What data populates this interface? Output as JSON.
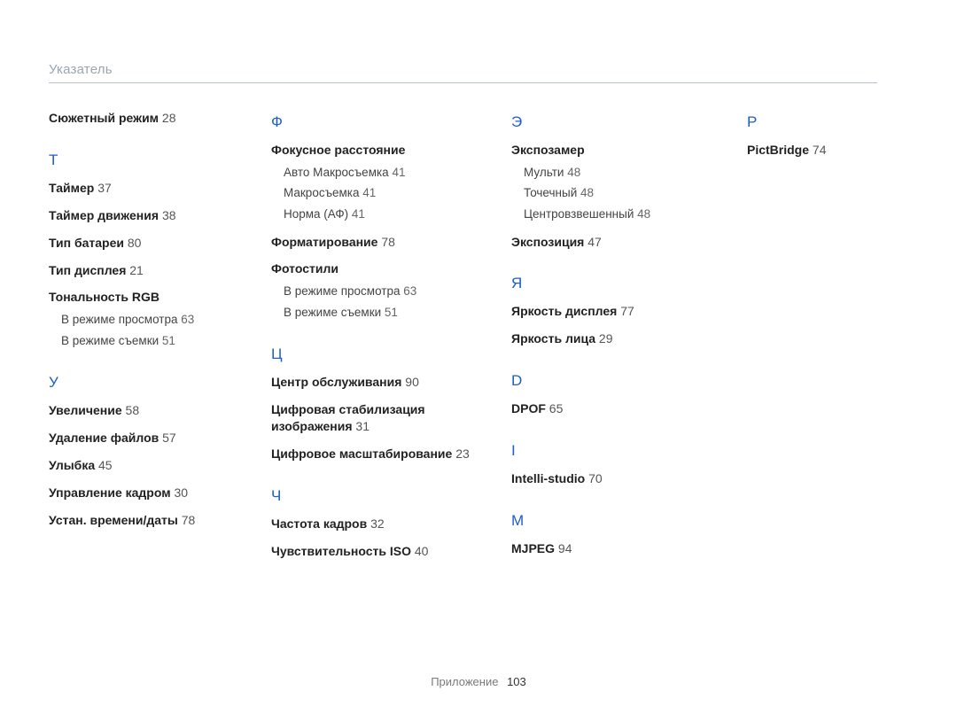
{
  "header": "Указатель",
  "footer_label": "Приложение",
  "footer_page": "103",
  "columns": [
    [
      {
        "type": "entry",
        "text": "Сюжетный режим",
        "page": "28",
        "top": true
      },
      {
        "type": "letter",
        "text": "Т"
      },
      {
        "type": "entry",
        "text": "Таймер",
        "page": "37"
      },
      {
        "type": "entry",
        "text": "Таймер движения",
        "page": "38"
      },
      {
        "type": "entry",
        "text": "Тип батареи",
        "page": "80"
      },
      {
        "type": "entry",
        "text": "Тип дисплея",
        "page": "21"
      },
      {
        "type": "entry",
        "text": "Тональность RGB"
      },
      {
        "type": "sub",
        "text": "В режиме просмотра",
        "page": "63"
      },
      {
        "type": "sub",
        "text": "В режиме съемки",
        "page": "51"
      },
      {
        "type": "letter",
        "text": "У"
      },
      {
        "type": "entry",
        "text": "Увеличение",
        "page": "58"
      },
      {
        "type": "entry",
        "text": "Удаление файлов",
        "page": "57"
      },
      {
        "type": "entry",
        "text": "Улыбка",
        "page": "45"
      },
      {
        "type": "entry",
        "text": "Управление кадром",
        "page": "30"
      },
      {
        "type": "entry",
        "text": "Устан. времени/даты",
        "page": "78"
      }
    ],
    [
      {
        "type": "letter",
        "text": "Ф",
        "first": true
      },
      {
        "type": "entry",
        "text": "Фокусное расстояние"
      },
      {
        "type": "sub",
        "text": "Авто Макросъемка",
        "page": "41"
      },
      {
        "type": "sub",
        "text": "Макросъемка",
        "page": "41"
      },
      {
        "type": "sub",
        "text": "Норма (АФ)",
        "page": "41"
      },
      {
        "type": "entry",
        "text": "Форматирование",
        "page": "78"
      },
      {
        "type": "entry",
        "text": "Фотостили"
      },
      {
        "type": "sub",
        "text": "В режиме просмотра",
        "page": "63"
      },
      {
        "type": "sub",
        "text": "В режиме съемки",
        "page": "51"
      },
      {
        "type": "letter",
        "text": "Ц"
      },
      {
        "type": "entry",
        "text": "Центр обслуживания",
        "page": "90"
      },
      {
        "type": "entry",
        "text": "Цифровая стабилизация изображения",
        "page": "31"
      },
      {
        "type": "entry",
        "text": "Цифровое масштабирование",
        "page": "23"
      },
      {
        "type": "letter",
        "text": "Ч"
      },
      {
        "type": "entry",
        "text": "Частота кадров",
        "page": "32"
      },
      {
        "type": "entry",
        "text": "Чувствительность ISO",
        "page": "40"
      }
    ],
    [
      {
        "type": "letter",
        "text": "Э",
        "first": true
      },
      {
        "type": "entry",
        "text": "Экспозамер"
      },
      {
        "type": "sub",
        "text": "Мульти",
        "page": "48"
      },
      {
        "type": "sub",
        "text": "Точечный",
        "page": "48"
      },
      {
        "type": "sub",
        "text": "Центровзвешенный",
        "page": "48"
      },
      {
        "type": "entry",
        "text": "Экспозиция",
        "page": "47"
      },
      {
        "type": "letter",
        "text": "Я"
      },
      {
        "type": "entry",
        "text": "Яркость дисплея",
        "page": "77"
      },
      {
        "type": "entry",
        "text": "Яркость лица",
        "page": "29"
      },
      {
        "type": "letter",
        "text": "D"
      },
      {
        "type": "entry",
        "text": "DPOF",
        "page": "65"
      },
      {
        "type": "letter",
        "text": "I"
      },
      {
        "type": "entry",
        "text": "Intelli-studio",
        "page": "70"
      },
      {
        "type": "letter",
        "text": "M"
      },
      {
        "type": "entry",
        "text": "MJPEG",
        "page": "94"
      }
    ],
    [
      {
        "type": "letter",
        "text": "P",
        "first": true
      },
      {
        "type": "entry",
        "text": "PictBridge",
        "page": "74"
      }
    ]
  ],
  "colors": {
    "letter": "#1e5ec8",
    "header_text": "#9aa5b1",
    "header_rule": "#b9c2cc",
    "body_text": "#2b2b2b",
    "background": "#ffffff"
  },
  "typography": {
    "header_fontsize_pt": 11,
    "letter_fontsize_pt": 13,
    "entry_fontsize_pt": 10.5,
    "sub_fontsize_pt": 10,
    "font_family": "Arial"
  }
}
